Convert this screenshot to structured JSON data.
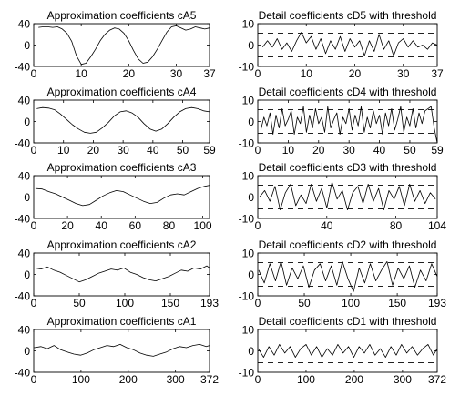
{
  "chart_data": [
    {
      "type": "line",
      "title": "Approximation coefficients cA5",
      "xlim": [
        0,
        37
      ],
      "ylim": [
        -40,
        40
      ],
      "xticks": [
        0,
        10,
        20,
        30,
        37
      ],
      "yticks": [
        40,
        0,
        -40
      ],
      "series": [
        {
          "x": [
            1,
            2,
            3,
            4,
            5,
            6,
            7,
            8,
            9,
            10,
            11,
            12,
            13,
            14,
            15,
            16,
            17,
            18,
            19,
            20,
            21,
            22,
            23,
            24,
            25,
            26,
            27,
            28,
            29,
            30,
            31,
            32,
            33,
            34,
            35,
            36,
            37
          ],
          "values": [
            33,
            34,
            34,
            33,
            34,
            30,
            22,
            7,
            -20,
            -36,
            -34,
            -22,
            -8,
            8,
            20,
            28,
            32,
            30,
            22,
            8,
            -10,
            -26,
            -34,
            -32,
            -22,
            -8,
            8,
            24,
            34,
            36,
            32,
            28,
            30,
            34,
            32,
            30,
            32
          ]
        }
      ]
    },
    {
      "type": "line",
      "title": "Detail coefficients cD5 with threshold",
      "xlim": [
        0,
        37
      ],
      "ylim": [
        -10,
        10
      ],
      "xticks": [
        0,
        10,
        20,
        30,
        37
      ],
      "yticks": [
        10,
        0,
        -10
      ],
      "threshold": 5.5,
      "series": [
        {
          "x": [
            1,
            2,
            3,
            4,
            5,
            6,
            7,
            8,
            9,
            10,
            11,
            12,
            13,
            14,
            15,
            16,
            17,
            18,
            19,
            20,
            21,
            22,
            23,
            24,
            25,
            26,
            27,
            28,
            29,
            30,
            31,
            32,
            33,
            34,
            35,
            36,
            37
          ],
          "values": [
            -1,
            2,
            -1,
            3,
            -2,
            1,
            -3,
            2,
            6,
            1,
            4,
            -2,
            3,
            -4,
            2,
            -2,
            4,
            -3,
            3,
            -1,
            2,
            -5,
            2,
            -3,
            5,
            -2,
            2,
            -5,
            1,
            3,
            -1,
            2,
            -1,
            0,
            -2,
            1,
            0
          ]
        }
      ]
    },
    {
      "type": "line",
      "title": "Approximation coefficients cA4",
      "xlim": [
        0,
        59
      ],
      "ylim": [
        -40,
        40
      ],
      "xticks": [
        0,
        10,
        20,
        30,
        40,
        50,
        59
      ],
      "yticks": [
        40,
        0,
        -40
      ],
      "series": [
        {
          "x": [
            1,
            3,
            5,
            7,
            9,
            11,
            13,
            15,
            17,
            19,
            21,
            23,
            25,
            27,
            29,
            31,
            33,
            35,
            37,
            39,
            41,
            43,
            45,
            47,
            49,
            51,
            53,
            55,
            57,
            59
          ],
          "values": [
            24,
            26,
            25,
            22,
            14,
            4,
            -6,
            -14,
            -20,
            -22,
            -20,
            -12,
            -2,
            10,
            18,
            20,
            16,
            8,
            -4,
            -14,
            -18,
            -14,
            -4,
            8,
            18,
            24,
            26,
            24,
            20,
            18
          ]
        }
      ]
    },
    {
      "type": "line",
      "title": "Detail coefficients cD4 with threshold",
      "xlim": [
        0,
        59
      ],
      "ylim": [
        -10,
        10
      ],
      "xticks": [
        0,
        10,
        20,
        30,
        40,
        50,
        59
      ],
      "yticks": [
        10,
        0,
        -10
      ],
      "threshold": 5.5,
      "series": [
        {
          "x": [
            1,
            2,
            3,
            4,
            5,
            6,
            7,
            8,
            9,
            10,
            11,
            12,
            13,
            14,
            15,
            16,
            17,
            18,
            19,
            20,
            21,
            22,
            23,
            24,
            25,
            26,
            27,
            28,
            29,
            30,
            31,
            32,
            33,
            34,
            35,
            36,
            37,
            38,
            39,
            40,
            41,
            42,
            43,
            44,
            45,
            46,
            47,
            48,
            49,
            50,
            51,
            52,
            53,
            54,
            55,
            56,
            57,
            58,
            59
          ],
          "values": [
            -4,
            2,
            -2,
            4,
            -6,
            3,
            -3,
            6,
            -2,
            1,
            5,
            -6,
            2,
            -1,
            7,
            -5,
            3,
            -3,
            6,
            -1,
            2,
            -5,
            7,
            -3,
            1,
            4,
            -6,
            2,
            -1,
            6,
            -4,
            3,
            -2,
            7,
            -5,
            2,
            -3,
            5,
            -1,
            3,
            -6,
            4,
            -2,
            6,
            -4,
            1,
            7,
            -5,
            2,
            -2,
            6,
            -3,
            4,
            -1,
            5,
            6,
            7,
            -3,
            -10
          ]
        }
      ]
    },
    {
      "type": "line",
      "title": "Approximation coefficients cA3",
      "xlim": [
        0,
        104
      ],
      "ylim": [
        -40,
        40
      ],
      "xticks": [
        0,
        20,
        40,
        60,
        80,
        100
      ],
      "yticks": [
        40,
        0,
        -40
      ],
      "series": [
        {
          "x": [
            1,
            5,
            9,
            13,
            17,
            21,
            25,
            29,
            33,
            37,
            41,
            45,
            49,
            53,
            57,
            61,
            65,
            69,
            73,
            77,
            81,
            85,
            89,
            93,
            97,
            101,
            104
          ],
          "values": [
            16,
            15,
            10,
            6,
            0,
            -6,
            -12,
            -16,
            -14,
            -6,
            2,
            8,
            12,
            10,
            4,
            -2,
            -8,
            -12,
            -10,
            -2,
            4,
            6,
            4,
            10,
            16,
            20,
            22
          ]
        }
      ]
    },
    {
      "type": "line",
      "title": "Detail coefficients cD3 with threshold",
      "xlim": [
        0,
        104
      ],
      "ylim": [
        -10,
        10
      ],
      "xticks": [
        0,
        40,
        80,
        104
      ],
      "yticks": [
        10,
        0,
        -10
      ],
      "threshold": 5.5,
      "series": [
        {
          "x": [
            1,
            4,
            7,
            10,
            13,
            16,
            19,
            22,
            25,
            28,
            31,
            34,
            37,
            40,
            43,
            46,
            49,
            52,
            55,
            58,
            61,
            64,
            67,
            70,
            73,
            76,
            79,
            82,
            85,
            88,
            91,
            94,
            97,
            100,
            103
          ],
          "values": [
            0,
            3,
            -2,
            5,
            -6,
            2,
            6,
            -4,
            1,
            -3,
            6,
            -2,
            4,
            -5,
            7,
            -1,
            3,
            -6,
            2,
            5,
            -3,
            6,
            -2,
            4,
            -6,
            3,
            -1,
            5,
            -4,
            6,
            -2,
            3,
            -3,
            2,
            -1
          ]
        }
      ]
    },
    {
      "type": "line",
      "title": "Approximation coefficients cA2",
      "xlim": [
        0,
        193
      ],
      "ylim": [
        -40,
        40
      ],
      "xticks": [
        0,
        50,
        100,
        150,
        193
      ],
      "yticks": [
        40,
        0,
        -40
      ],
      "series": [
        {
          "x": [
            1,
            8,
            15,
            22,
            29,
            36,
            43,
            50,
            57,
            64,
            71,
            78,
            85,
            92,
            99,
            106,
            113,
            120,
            127,
            134,
            141,
            148,
            155,
            162,
            169,
            176,
            183,
            190,
            193
          ],
          "values": [
            12,
            10,
            14,
            8,
            4,
            -2,
            -8,
            -14,
            -10,
            -4,
            2,
            6,
            10,
            8,
            12,
            4,
            0,
            -6,
            -10,
            -12,
            -8,
            -4,
            2,
            8,
            6,
            12,
            10,
            16,
            12
          ]
        }
      ]
    },
    {
      "type": "line",
      "title": "Detail coefficients cD2 with threshold",
      "xlim": [
        0,
        193
      ],
      "ylim": [
        -10,
        10
      ],
      "xticks": [
        0,
        50,
        100,
        150,
        193
      ],
      "yticks": [
        10,
        0,
        -10
      ],
      "threshold": 5.5,
      "series": [
        {
          "x": [
            1,
            7,
            13,
            19,
            25,
            31,
            37,
            43,
            49,
            55,
            61,
            67,
            73,
            79,
            85,
            91,
            97,
            103,
            109,
            115,
            121,
            127,
            133,
            139,
            145,
            151,
            157,
            163,
            169,
            175,
            181,
            187,
            193
          ],
          "values": [
            2,
            -4,
            5,
            -3,
            6,
            -5,
            3,
            -2,
            4,
            -6,
            2,
            5,
            -3,
            4,
            -5,
            6,
            -2,
            -8,
            3,
            -4,
            5,
            -3,
            2,
            6,
            -5,
            3,
            -2,
            4,
            -6,
            2,
            -3,
            5,
            -1
          ]
        }
      ]
    },
    {
      "type": "line",
      "title": "Approximation coefficients cA1",
      "xlim": [
        0,
        372
      ],
      "ylim": [
        -40,
        40
      ],
      "xticks": [
        0,
        100,
        200,
        300,
        372
      ],
      "yticks": [
        40,
        0,
        -40
      ],
      "series": [
        {
          "x": [
            1,
            15,
            29,
            43,
            57,
            71,
            85,
            99,
            113,
            127,
            141,
            155,
            169,
            183,
            197,
            211,
            225,
            239,
            253,
            267,
            281,
            295,
            309,
            323,
            337,
            351,
            365,
            372
          ],
          "values": [
            6,
            8,
            4,
            10,
            2,
            -2,
            -6,
            -8,
            -4,
            2,
            6,
            10,
            8,
            12,
            6,
            2,
            -4,
            -8,
            -10,
            -6,
            -2,
            4,
            8,
            6,
            10,
            12,
            8,
            10
          ]
        }
      ]
    },
    {
      "type": "line",
      "title": "Detail coefficients cD1 with threshold",
      "xlim": [
        0,
        372
      ],
      "ylim": [
        -10,
        10
      ],
      "xticks": [
        0,
        100,
        200,
        300,
        372
      ],
      "yticks": [
        10,
        0,
        -10
      ],
      "threshold": 5.5,
      "series": [
        {
          "x": [
            1,
            12,
            23,
            34,
            45,
            56,
            67,
            78,
            89,
            100,
            111,
            122,
            133,
            144,
            155,
            166,
            177,
            188,
            199,
            210,
            221,
            232,
            243,
            254,
            265,
            276,
            287,
            298,
            309,
            320,
            331,
            342,
            353,
            364,
            372
          ],
          "values": [
            1,
            -3,
            2,
            -2,
            3,
            -1,
            2,
            -3,
            1,
            3,
            -2,
            2,
            -3,
            1,
            -2,
            3,
            -1,
            2,
            -3,
            2,
            -1,
            3,
            -2,
            1,
            -3,
            2,
            -2,
            3,
            -1,
            2,
            -2,
            1,
            3,
            -2,
            1
          ]
        }
      ]
    }
  ]
}
